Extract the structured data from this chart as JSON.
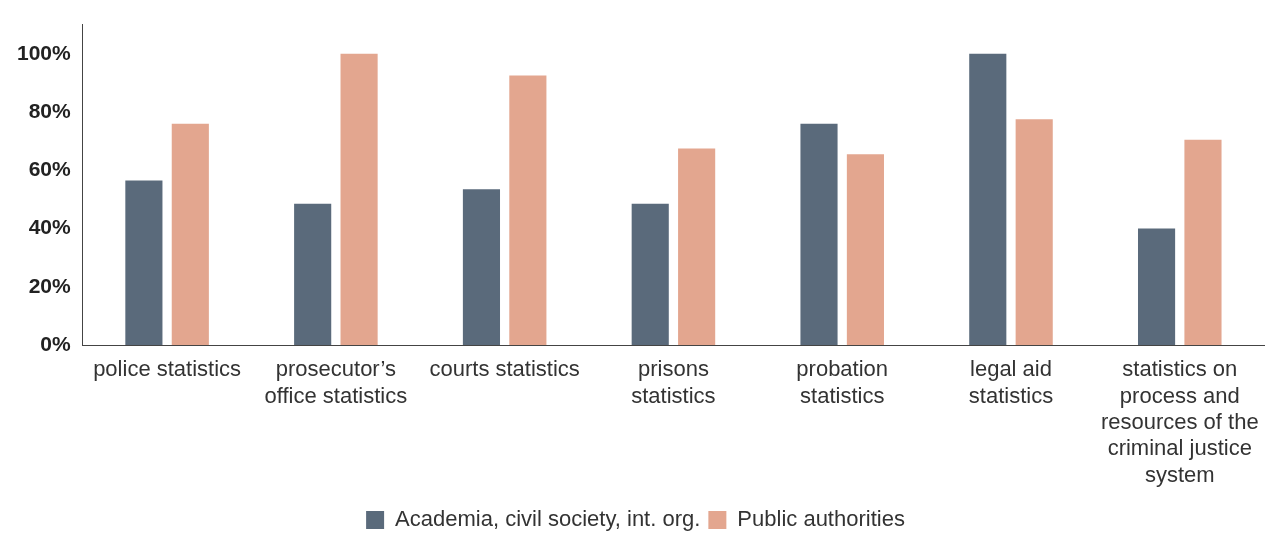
{
  "chart_data": {
    "type": "bar",
    "categories": [
      "police statistics",
      "prosecutor’s office statistics",
      "courts statistics",
      "prisons statistics",
      "probation statistics",
      "legal aid statistics",
      "statistics on process and resources of the criminal justice system"
    ],
    "series": [
      {
        "name": "Academia, civil society, int. org.",
        "color": "#5a6a7b",
        "values": [
          56.5,
          48.5,
          53.5,
          48.5,
          76,
          100,
          40
        ]
      },
      {
        "name": "Public authorities",
        "color": "#e3a68f",
        "values": [
          76,
          100,
          92.5,
          67.5,
          65.5,
          77.5,
          70.5
        ]
      }
    ],
    "ylim": [
      0,
      110
    ],
    "yticks": [
      {
        "value": 0,
        "label": "0%"
      },
      {
        "value": 20,
        "label": "20%"
      },
      {
        "value": 40,
        "label": "40%"
      },
      {
        "value": 60,
        "label": "60%"
      },
      {
        "value": 80,
        "label": "80%"
      },
      {
        "value": 100,
        "label": "100%"
      }
    ],
    "grid": false,
    "legend": "bottom"
  }
}
